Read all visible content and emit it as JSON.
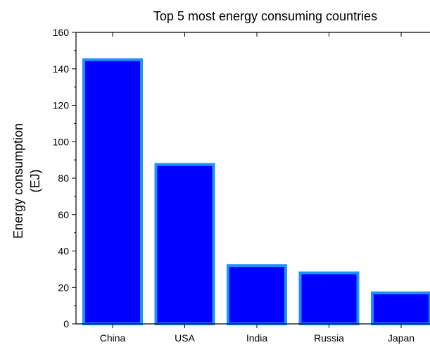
{
  "chart_data": {
    "type": "bar",
    "title": "Top 5 most energy consuming countries",
    "xlabel": "",
    "ylabel_lines": [
      "Energy consumption",
      "(EJ)"
    ],
    "categories": [
      "China",
      "USA",
      "India",
      "Russia",
      "Japan"
    ],
    "values": [
      145,
      87.5,
      32,
      28,
      17
    ],
    "ylim": [
      0,
      160
    ],
    "yticks": [
      0,
      20,
      40,
      60,
      80,
      100,
      120,
      140,
      160
    ],
    "ytick_labels": [
      "0",
      "20",
      "40",
      "60",
      "80",
      "100",
      "120",
      "140",
      "160"
    ],
    "grid": false,
    "legend": "none",
    "colors": {
      "bar_fill": "#0000ff",
      "bar_edge": "#1e90ff",
      "axis": "#000000"
    }
  }
}
